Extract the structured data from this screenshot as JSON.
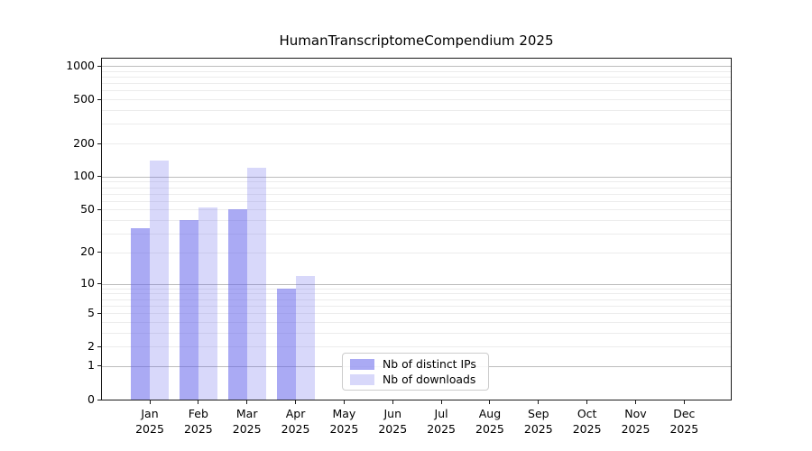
{
  "title": "HumanTranscriptomeCompendium 2025",
  "chart_data": {
    "type": "bar",
    "title": "HumanTranscriptomeCompendium 2025",
    "categories": [
      "Jan",
      "Feb",
      "Mar",
      "Apr",
      "May",
      "Jun",
      "Jul",
      "Aug",
      "Sep",
      "Oct",
      "Nov",
      "Dec"
    ],
    "year_label": "2025",
    "series": [
      {
        "name": "Nb of distinct IPs",
        "color": "rgba(100,100,235,0.55)",
        "values": [
          34,
          40,
          50,
          9,
          0,
          0,
          0,
          0,
          0,
          0,
          0,
          0
        ]
      },
      {
        "name": "Nb of downloads",
        "color": "rgba(100,100,235,0.25)",
        "values": [
          140,
          52,
          120,
          12,
          0,
          0,
          0,
          0,
          0,
          0,
          0,
          0
        ]
      }
    ],
    "y_axis": {
      "scale": "log1p",
      "tick_values": [
        0,
        1,
        2,
        5,
        10,
        20,
        50,
        100,
        200,
        500,
        1000
      ],
      "major_gridlines": [
        1,
        10,
        100,
        1000
      ],
      "minor_gridlines": [
        2,
        3,
        4,
        5,
        6,
        7,
        8,
        9,
        20,
        30,
        40,
        50,
        60,
        70,
        80,
        90,
        200,
        300,
        400,
        500,
        600,
        700,
        800,
        900
      ],
      "ylim": [
        0,
        1164
      ]
    },
    "xlabel": "",
    "ylabel": "",
    "grid": true,
    "legend_position": "lower-center",
    "colors": {
      "major_grid": "#bdbdbd",
      "minor_grid": "#ececec",
      "axis": "#1a1a1a",
      "background": "#ffffff"
    }
  }
}
